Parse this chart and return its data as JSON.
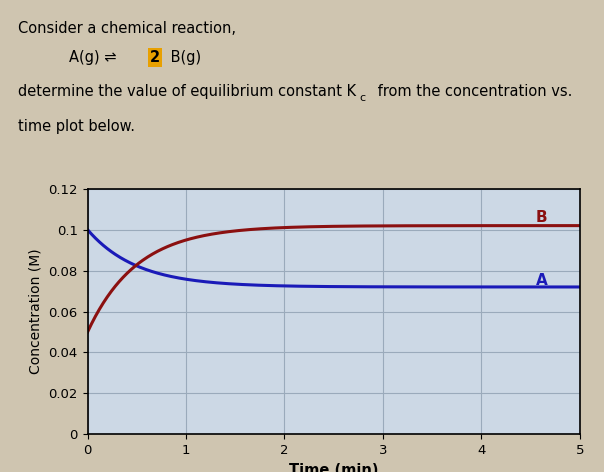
{
  "xlabel": "Time (min)",
  "ylabel": "Concentration (M)",
  "xlim": [
    0,
    5
  ],
  "ylim": [
    0,
    0.12
  ],
  "yticks": [
    0,
    0.02,
    0.04,
    0.06,
    0.08,
    0.1,
    0.12
  ],
  "xticks": [
    0,
    1,
    2,
    3,
    4,
    5
  ],
  "curve_A_start": 0.1,
  "curve_A_end": 0.072,
  "curve_A_color": "#1a1ab8",
  "curve_B_start": 0.05,
  "curve_B_end": 0.102,
  "curve_B_color": "#8b1010",
  "label_A": "A",
  "label_B": "B",
  "bg_color": "#ccd8e5",
  "fig_bg": "#cfc5b0",
  "grid_color": "#9aaabb",
  "highlight_2_color": "#e8a000",
  "text_fontsize": 10.5,
  "label_fontsize": 11,
  "curve_lw": 2.2,
  "k_rate": 2.0
}
